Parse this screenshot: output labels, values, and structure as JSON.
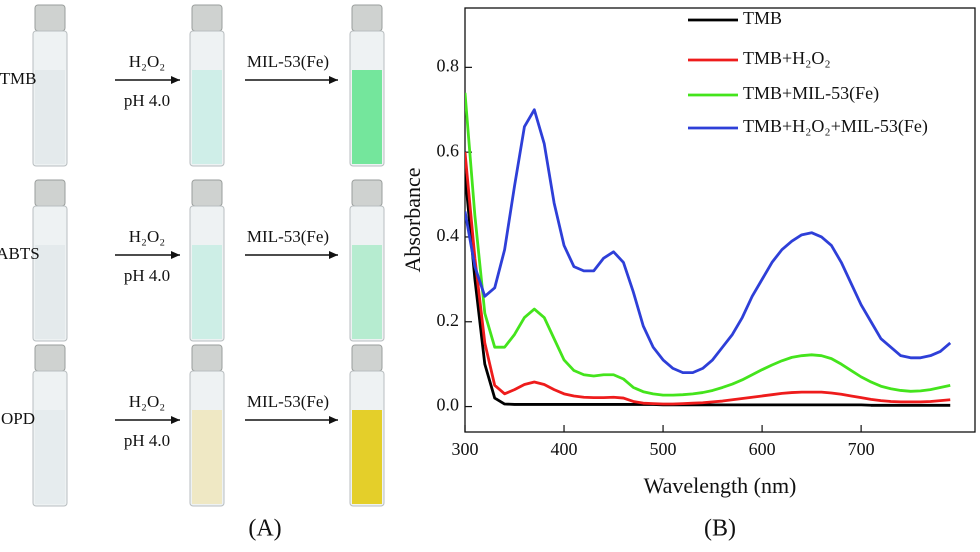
{
  "panel_a": {
    "rows": [
      {
        "label": "TMB",
        "step1": "H₂O₂",
        "step1_condition": "pH 4.0",
        "step2": "MIL-53(Fe)"
      },
      {
        "label": "ABTS",
        "step1": "H₂O₂",
        "step1_condition": "pH 4.0",
        "step2": "MIL-53(Fe)"
      },
      {
        "label": "OPD",
        "step1": "H₂O₂",
        "step1_condition": "pH 4.0",
        "step2": "MIL-53(Fe)"
      }
    ],
    "caption": "(A)"
  },
  "chart_data": {
    "type": "line",
    "caption": "(B)",
    "x_label": "Wavelength (nm)",
    "y_label": "Absorbance",
    "xlim": [
      300,
      815
    ],
    "ylim": [
      -0.06,
      0.94
    ],
    "xticks": [
      300,
      400,
      500,
      600,
      700
    ],
    "yticks": [
      {
        "value": 0,
        "label": "0.0"
      },
      0.2,
      0.4,
      0.6,
      0.8
    ],
    "legend": "upper-right",
    "x": [
      300,
      310,
      320,
      330,
      340,
      350,
      360,
      370,
      380,
      390,
      400,
      410,
      420,
      430,
      440,
      450,
      460,
      470,
      480,
      490,
      500,
      510,
      520,
      530,
      540,
      550,
      560,
      570,
      580,
      590,
      600,
      610,
      620,
      630,
      640,
      650,
      660,
      670,
      680,
      690,
      700,
      710,
      720,
      730,
      740,
      750,
      760,
      770,
      780,
      790
    ],
    "series": [
      {
        "name": "TMB",
        "color": "#000000",
        "values": [
          0.55,
          0.3,
          0.1,
          0.02,
          0.006,
          0.005,
          0.005,
          0.005,
          0.005,
          0.005,
          0.005,
          0.005,
          0.005,
          0.005,
          0.005,
          0.005,
          0.005,
          0.005,
          0.005,
          0.005,
          0.004,
          0.004,
          0.004,
          0.004,
          0.004,
          0.004,
          0.004,
          0.004,
          0.004,
          0.004,
          0.004,
          0.004,
          0.004,
          0.004,
          0.004,
          0.004,
          0.004,
          0.004,
          0.004,
          0.004,
          0.004,
          0.003,
          0.003,
          0.003,
          0.003,
          0.003,
          0.003,
          0.003,
          0.003,
          0.003
        ]
      },
      {
        "name": "TMB+H₂O₂",
        "color": "#ee1c1c",
        "values": [
          0.6,
          0.35,
          0.15,
          0.05,
          0.03,
          0.04,
          0.052,
          0.058,
          0.052,
          0.04,
          0.03,
          0.025,
          0.022,
          0.021,
          0.021,
          0.022,
          0.02,
          0.012,
          0.008,
          0.007,
          0.006,
          0.006,
          0.007,
          0.008,
          0.009,
          0.011,
          0.013,
          0.016,
          0.019,
          0.022,
          0.025,
          0.028,
          0.031,
          0.033,
          0.034,
          0.034,
          0.034,
          0.032,
          0.029,
          0.025,
          0.021,
          0.017,
          0.014,
          0.012,
          0.011,
          0.011,
          0.011,
          0.012,
          0.014,
          0.016
        ]
      },
      {
        "name": "TMB+MIL-53(Fe)",
        "color": "#44e41c",
        "values": [
          0.74,
          0.45,
          0.22,
          0.14,
          0.14,
          0.17,
          0.21,
          0.23,
          0.21,
          0.16,
          0.11,
          0.085,
          0.075,
          0.072,
          0.075,
          0.075,
          0.065,
          0.045,
          0.035,
          0.03,
          0.027,
          0.027,
          0.028,
          0.03,
          0.033,
          0.038,
          0.045,
          0.053,
          0.063,
          0.075,
          0.087,
          0.098,
          0.108,
          0.116,
          0.12,
          0.122,
          0.12,
          0.113,
          0.1,
          0.085,
          0.07,
          0.058,
          0.048,
          0.042,
          0.038,
          0.036,
          0.037,
          0.04,
          0.045,
          0.05
        ]
      },
      {
        "name": "TMB+H₂O₂+MIL-53(Fe)",
        "color": "#2e3fd8",
        "values": [
          0.46,
          0.33,
          0.26,
          0.28,
          0.37,
          0.52,
          0.66,
          0.7,
          0.62,
          0.48,
          0.38,
          0.33,
          0.32,
          0.32,
          0.35,
          0.365,
          0.34,
          0.27,
          0.19,
          0.14,
          0.11,
          0.09,
          0.08,
          0.08,
          0.09,
          0.11,
          0.14,
          0.17,
          0.21,
          0.26,
          0.3,
          0.34,
          0.37,
          0.39,
          0.405,
          0.41,
          0.4,
          0.38,
          0.34,
          0.29,
          0.24,
          0.2,
          0.16,
          0.14,
          0.12,
          0.115,
          0.115,
          0.12,
          0.13,
          0.15
        ]
      }
    ]
  }
}
